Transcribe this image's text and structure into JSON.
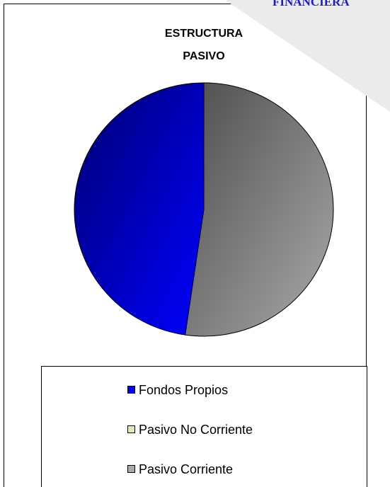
{
  "banner": "FINANCIERA",
  "chart_data": {
    "type": "pie",
    "title": [
      "ESTRUCTURA",
      "PASIVO"
    ],
    "series": [
      {
        "name": "Fondos Propios",
        "color": "#0000ff",
        "values": [
          47.7
        ]
      },
      {
        "name": "Pasivo No Corriente",
        "color": "#e6e6b4",
        "values": [
          0
        ]
      },
      {
        "name": "Pasivo Corriente",
        "color": "#aaaaaa",
        "values": [
          52.3
        ]
      }
    ],
    "legend": "bottom"
  }
}
